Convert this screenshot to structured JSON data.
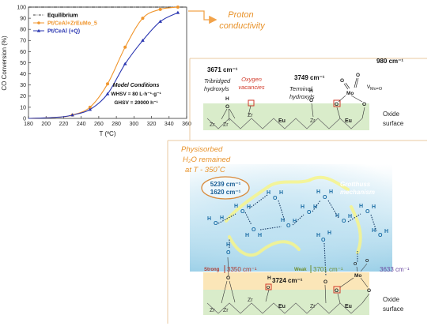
{
  "chart_data": {
    "type": "line",
    "xlabel": "T (ºC)",
    "ylabel": "CO Conversion (%)",
    "xlim": [
      180,
      360
    ],
    "ylim": [
      0,
      100
    ],
    "xticks": [
      180,
      200,
      220,
      240,
      260,
      280,
      300,
      320,
      340,
      360
    ],
    "yticks": [
      0,
      10,
      20,
      30,
      40,
      50,
      60,
      70,
      80,
      90,
      100
    ],
    "legend_placement": "top-left",
    "series": [
      {
        "name": "Equilibrium",
        "style": "dash-dot",
        "color": "#000000",
        "x": [
          180,
          360
        ],
        "y": [
          100,
          100
        ]
      },
      {
        "name": "Pt/CeAl+ZrEuMo_5",
        "marker": "circle",
        "color": "#f0962e",
        "x": [
          230,
          250,
          270,
          290,
          310,
          330,
          350
        ],
        "y": [
          3,
          10,
          31,
          64,
          90,
          98,
          100
        ]
      },
      {
        "name": "Pt/CeAl (+Q)",
        "marker": "triangle",
        "color": "#2a36b1",
        "x": [
          230,
          250,
          270,
          290,
          310,
          330,
          350
        ],
        "y": [
          3,
          8,
          22,
          49,
          70,
          87,
          95
        ]
      }
    ],
    "annotation": {
      "title": "Model Conditions",
      "line1": "WHSV = 80 L·h⁻¹·g⁻¹",
      "line2": "GHSV = 20000 h⁻¹"
    }
  },
  "diagram": {
    "proton_conductivity": "Proton\nconductivity",
    "top": {
      "wn_3671": "3671 cm⁻¹",
      "tribridged": "Tribridged",
      "hydroxyls": "hydroxyls",
      "oxygen": "Oxygen",
      "vacancies": "vacancies",
      "wn_3749": "3749 cm⁻¹",
      "terminal": "Terminal",
      "hydroxyls2": "hydroxyls",
      "wn_980": "980 cm⁻¹",
      "nu": "ν",
      "nu_sub": "Mo=O",
      "mo": "Mo",
      "oxide": "Oxide",
      "surface": "surface",
      "zr1": "Zr",
      "zr2": "Zr",
      "zr3": "Zr",
      "eu1": "Eu",
      "zr4": "Zr",
      "eu2": "Eu"
    },
    "bottom": {
      "physisorbed": "Physisorbed",
      "h2o": "H₂O remained",
      "at_t": "at  T - 350˚C",
      "wn_5239": "5239 cm⁻¹",
      "wn_1620": "1620 cm⁻¹",
      "grotthuss": "Grotthuss",
      "mechanism": "mechanism",
      "strong": "Strong",
      "wn_3350": "3350 cm⁻¹",
      "weak": "Weak",
      "wn_3701": "3701 cm⁻¹",
      "wn_3724": "3724 cm⁻¹",
      "wn_3633": "3633 cm⁻¹",
      "mo": "Mo",
      "oxide": "Oxide",
      "surface": "surface",
      "zr1": "Zr",
      "zr2": "Zr",
      "zr3": "Zr",
      "eu1": "Eu",
      "zr4": "Zr",
      "eu2": "Eu"
    }
  }
}
